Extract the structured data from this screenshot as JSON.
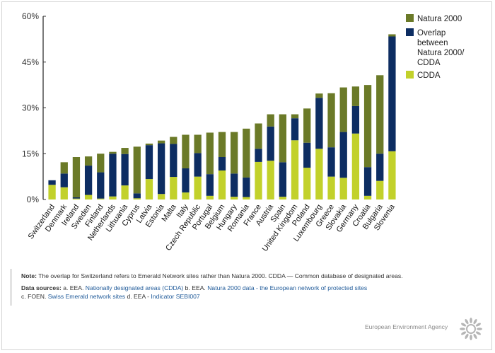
{
  "chart_data": {
    "type": "bar",
    "stacked": true,
    "ylim": [
      0,
      60
    ],
    "yticks": [
      0,
      15,
      30,
      45,
      60
    ],
    "ytick_labels": [
      "0%",
      "15%",
      "30%",
      "45%",
      "60%"
    ],
    "grid": false,
    "legend_placement": "top-right",
    "categories": [
      "Switzerland",
      "Denmark",
      "Ireland",
      "Sweden",
      "Finland",
      "Netherlands",
      "Lithuania",
      "Cyprus",
      "Latvia",
      "Estonia",
      "Malta",
      "Italy",
      "Czech Republic",
      "Portugal",
      "Belgium",
      "Hungary",
      "Romania",
      "France",
      "Austria",
      "Spain",
      "United Kingdom",
      "Poland",
      "Luxembourg",
      "Greece",
      "Slovakia",
      "Germany",
      "Croatia",
      "Bulgaria",
      "Slovenia"
    ],
    "series": [
      {
        "name": "CDDA",
        "color": "#c2d12b",
        "values": [
          4.8,
          4.0,
          0.3,
          1.5,
          0.3,
          1.0,
          4.6,
          0.4,
          6.7,
          1.8,
          7.4,
          2.3,
          7.5,
          1.2,
          9.5,
          0.9,
          0.8,
          12.3,
          12.7,
          0.9,
          19.4,
          10.4,
          16.6,
          7.5,
          7.1,
          21.6,
          1.2,
          6.1,
          15.8
        ]
      },
      {
        "name": "Overlap between Natura 2000/ CDDA",
        "color": "#0d2d62",
        "values": [
          1.5,
          4.5,
          0.4,
          9.6,
          8.6,
          14.0,
          10.3,
          1.6,
          11.1,
          16.6,
          10.8,
          7.9,
          7.7,
          7.1,
          4.4,
          7.6,
          6.4,
          4.3,
          11.2,
          11.3,
          7.2,
          8.2,
          16.7,
          9.6,
          15.0,
          9.0,
          9.4,
          8.9,
          37.6
        ]
      },
      {
        "name": "Natura 2000",
        "color": "#6b7a28",
        "values": [
          0.0,
          3.7,
          13.2,
          3.0,
          6.1,
          0.6,
          2.0,
          15.3,
          0.5,
          0.9,
          2.3,
          11.0,
          6.0,
          13.6,
          8.2,
          13.6,
          16.0,
          8.3,
          4.0,
          15.7,
          1.3,
          11.2,
          1.4,
          17.7,
          14.6,
          6.4,
          26.9,
          25.7,
          0.7
        ]
      }
    ],
    "legend": [
      "Natura 2000",
      "Overlap between Natura 2000/ CDDA",
      "CDDA"
    ]
  },
  "legend_lines": {
    "natura": [
      "Natura 2000"
    ],
    "overlap": [
      "Overlap",
      "between",
      "Natura 2000/",
      "CDDA"
    ],
    "cdda": [
      "CDDA"
    ]
  },
  "notes": {
    "note_label": "Note:",
    "note_text": " The overlap for Switzerland refers to Emerald Network sites rather than Natura 2000. CDDA — Common database of designated areas.",
    "sources_label": "Data sources:",
    "a_prefix": " a. EEA. ",
    "a_link": "Nationally designated areas (CDDA)",
    "b_prefix": "  b. EEA. ",
    "b_link": "Natura 2000 data - the European network of protected sites",
    "c_prefix": "c. FOEN. ",
    "c_link": "Swiss Emerald network sites",
    "d_prefix": "  d. EEA - ",
    "d_link": "Indicator SEBI007"
  },
  "footer": {
    "agency": "European Environment Agency",
    "logo_icon": "eea-sun-icon"
  }
}
